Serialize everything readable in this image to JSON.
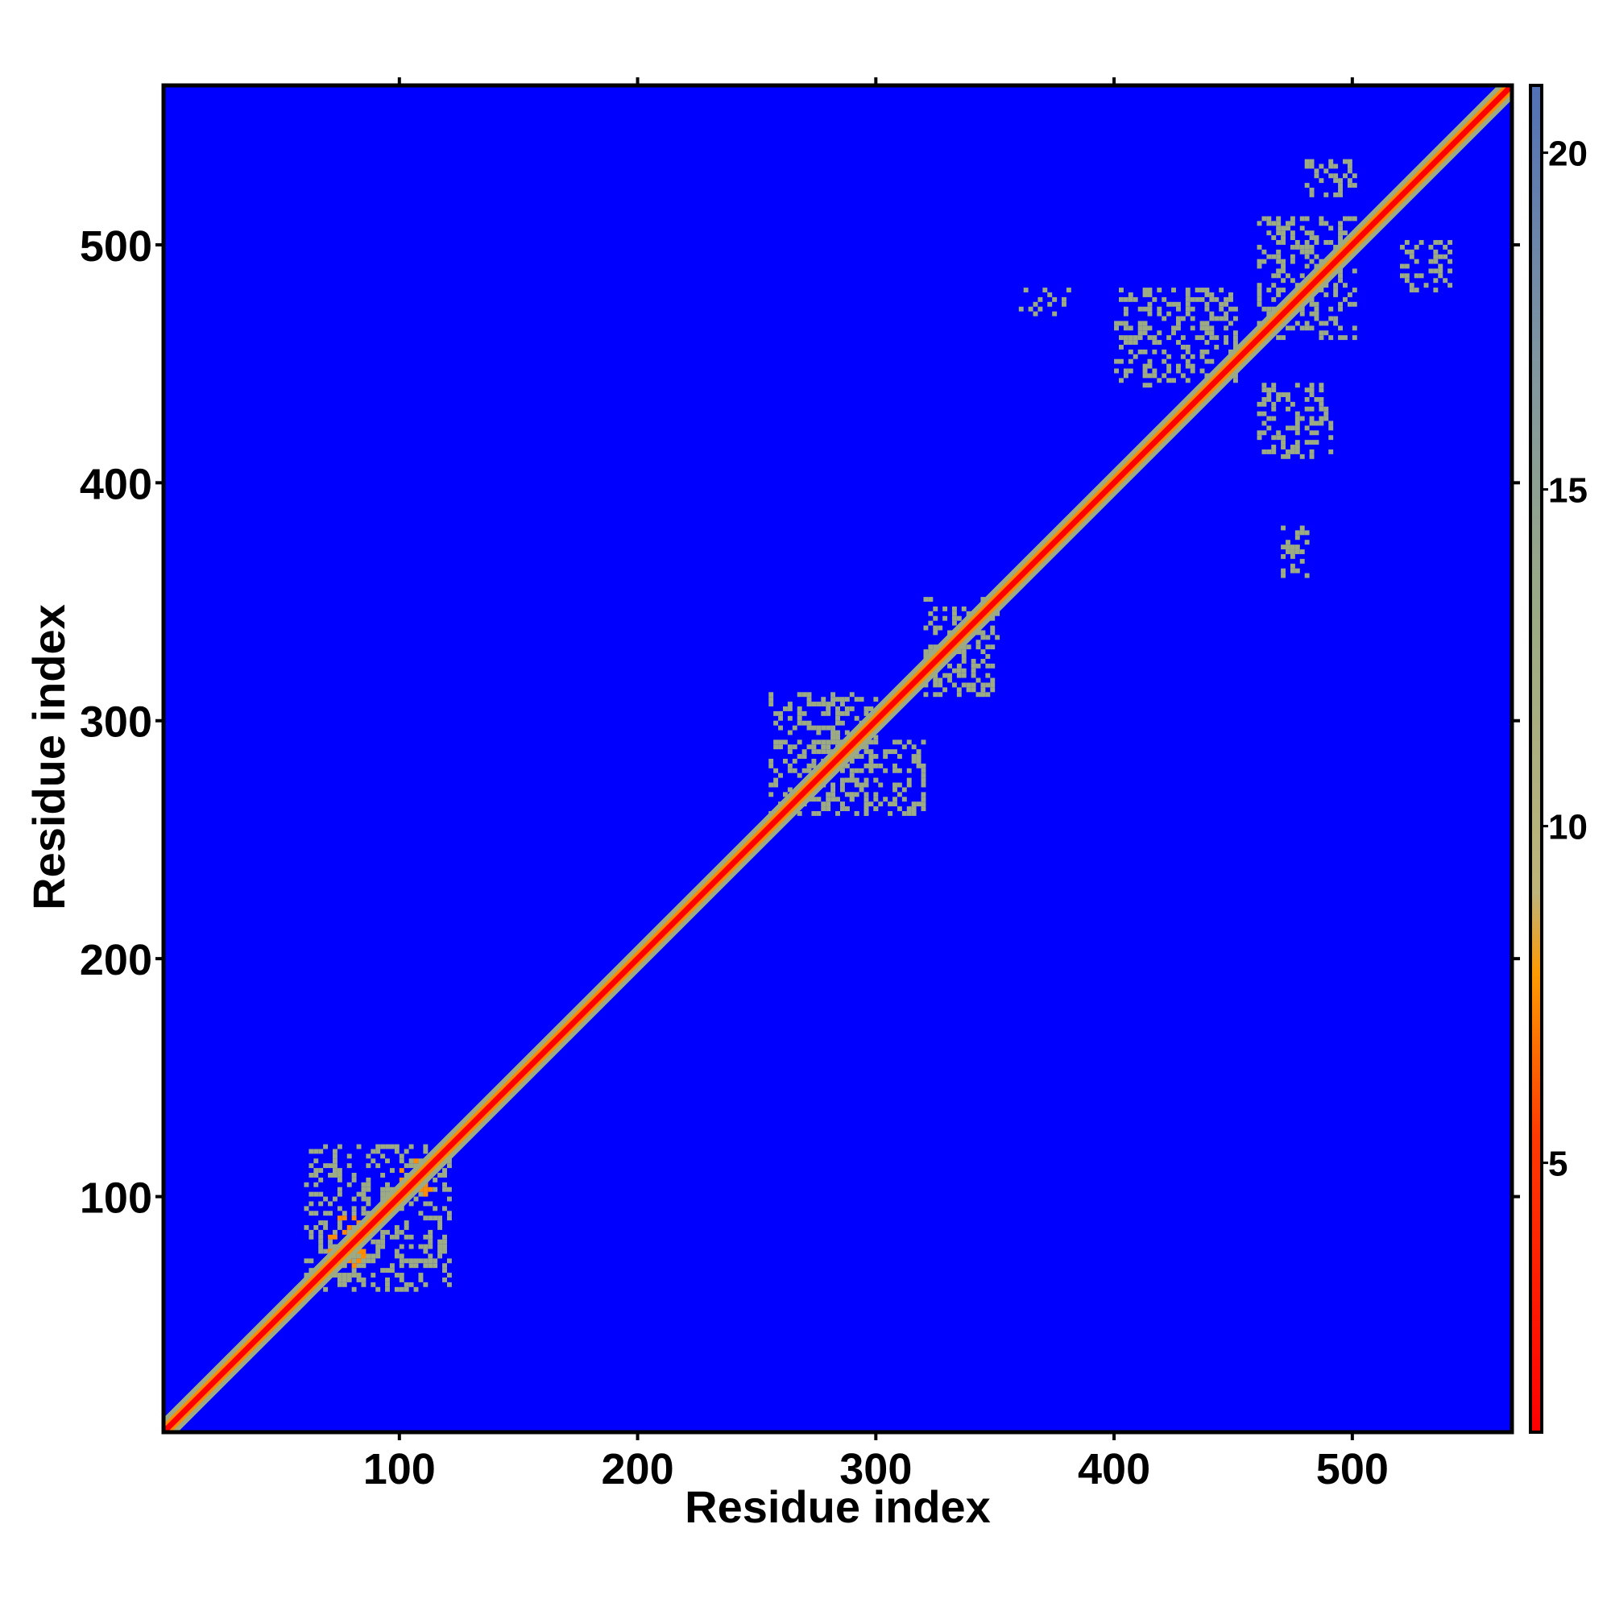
{
  "chart_data": {
    "type": "heatmap",
    "title": "",
    "xlabel": "Residue index",
    "ylabel": "Residue index",
    "xlim": [
      1,
      567
    ],
    "ylim": [
      1,
      567
    ],
    "x_ticks": [
      100,
      200,
      300,
      400,
      500
    ],
    "y_ticks": [
      100,
      200,
      300,
      400,
      500
    ],
    "x_tick_labels": [
      "100",
      "200",
      "300",
      "400",
      "500"
    ],
    "y_tick_labels": [
      "100",
      "200",
      "300",
      "400",
      "500"
    ],
    "colorbar": {
      "range": [
        1,
        21
      ],
      "ticks": [
        5,
        10,
        15,
        20
      ],
      "tick_labels": [
        "5",
        "10",
        "15",
        "20"
      ],
      "colors": {
        "close": "#ff0000",
        "near": "#ff8c00",
        "mid": "#9cab84",
        "far": "#5f7fa8",
        "background": "#0000ff"
      }
    },
    "description_values": {
      "diagonal": "distance ~1-4 along x=y",
      "band_halfwidth_residues": 6
    },
    "contact_regions": [
      {
        "x": [
          60,
          120
        ],
        "y": [
          60,
          120
        ],
        "level": "mid"
      },
      {
        "x": [
          70,
          85
        ],
        "y": [
          70,
          90
        ],
        "level": "near"
      },
      {
        "x": [
          100,
          112
        ],
        "y": [
          100,
          115
        ],
        "level": "near"
      },
      {
        "x": [
          255,
          300
        ],
        "y": [
          260,
          310
        ],
        "level": "mid"
      },
      {
        "x": [
          285,
          320
        ],
        "y": [
          260,
          290
        ],
        "level": "mid"
      },
      {
        "x": [
          320,
          350
        ],
        "y": [
          310,
          350
        ],
        "level": "mid"
      },
      {
        "x": [
          360,
          380
        ],
        "y": [
          470,
          480
        ],
        "level": "mid"
      },
      {
        "x": [
          400,
          450
        ],
        "y": [
          440,
          480
        ],
        "level": "mid"
      },
      {
        "x": [
          460,
          500
        ],
        "y": [
          460,
          510
        ],
        "level": "mid"
      },
      {
        "x": [
          460,
          490
        ],
        "y": [
          410,
          440
        ],
        "level": "mid"
      },
      {
        "x": [
          470,
          480
        ],
        "y": [
          360,
          380
        ],
        "level": "mid"
      },
      {
        "x": [
          480,
          500
        ],
        "y": [
          520,
          535
        ],
        "level": "mid"
      },
      {
        "x": [
          520,
          540
        ],
        "y": [
          480,
          500
        ],
        "level": "mid"
      }
    ]
  }
}
